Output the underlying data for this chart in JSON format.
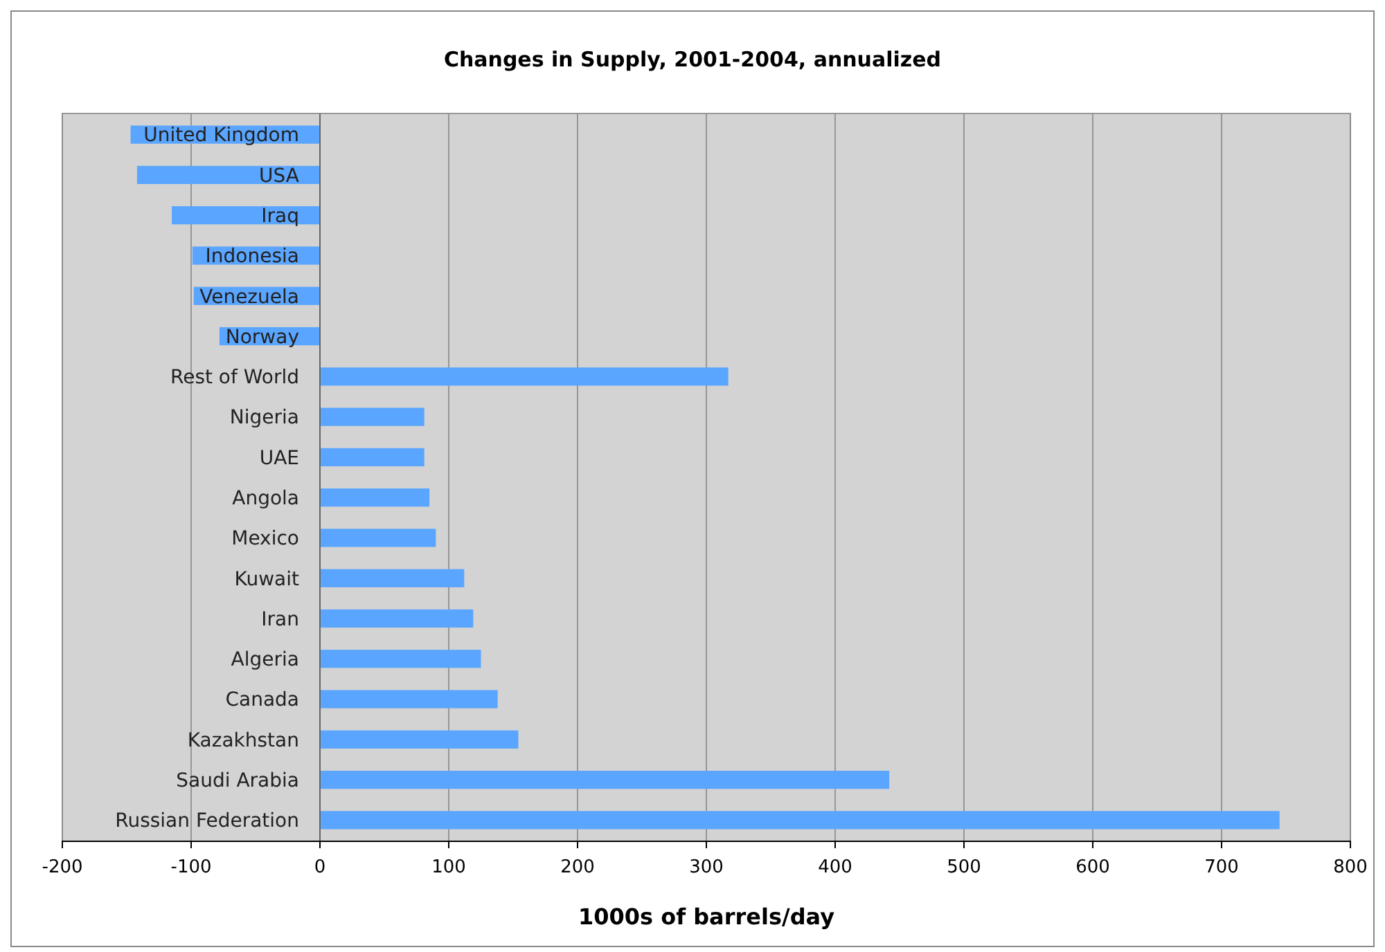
{
  "chart_data": {
    "type": "bar",
    "orientation": "horizontal",
    "title": "Changes in Supply, 2001-2004, annualized",
    "xlabel": "1000s of barrels/day",
    "categories": [
      "United Kingdom",
      "USA",
      "Iraq",
      "Indonesia",
      "Venezuela",
      "Norway",
      "Rest of World",
      "Nigeria",
      "UAE",
      "Angola",
      "Mexico",
      "Kuwait",
      "Iran",
      "Algeria",
      "Canada",
      "Kazakhstan",
      "Saudi Arabia",
      "Russian Federation"
    ],
    "values": [
      -147,
      -142,
      -115,
      -99,
      -98,
      -78,
      317,
      81,
      81,
      85,
      90,
      112,
      119,
      125,
      138,
      154,
      442,
      745
    ],
    "color": "#5aa5ff",
    "xlim": [
      -200,
      800
    ],
    "xticks": [
      -200,
      -100,
      0,
      100,
      200,
      300,
      400,
      500,
      600,
      700,
      800
    ],
    "grid": "x"
  }
}
